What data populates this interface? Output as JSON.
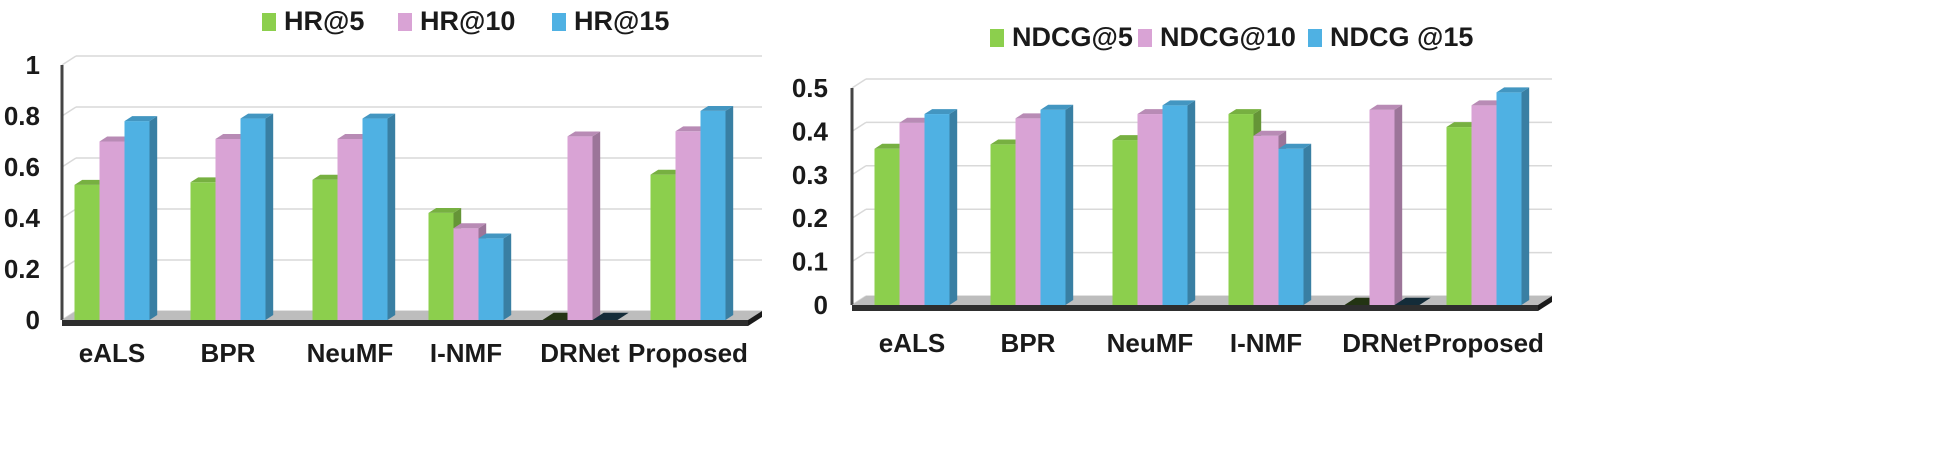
{
  "chart_data": [
    {
      "type": "bar",
      "categories": [
        "eALS",
        "BPR",
        "NeuMF",
        "I-NMF",
        "DRNet",
        "Proposed"
      ],
      "series": [
        {
          "name": "HR@5",
          "color": "#8ccf4d",
          "values": [
            0.53,
            0.54,
            0.55,
            0.42,
            0,
            0.57
          ]
        },
        {
          "name": "HR@10",
          "color": "#d9a3d5",
          "values": [
            0.7,
            0.71,
            0.71,
            0.36,
            0.72,
            0.74
          ]
        },
        {
          "name": "HR@15",
          "color": "#4fb1e3",
          "values": [
            0.78,
            0.79,
            0.79,
            0.32,
            0,
            0.82
          ]
        }
      ],
      "ylim": [
        0,
        1
      ],
      "yticks": [
        "0",
        "0.2",
        "0.4",
        "0.6",
        "0.8",
        "1"
      ],
      "grid": true,
      "legend_position": "top"
    },
    {
      "type": "bar",
      "categories": [
        "eALS",
        "BPR",
        "NeuMF",
        "I-NMF",
        "DRNet",
        "Proposed"
      ],
      "series": [
        {
          "name": "NDCG@5",
          "color": "#8ccf4d",
          "values": [
            0.36,
            0.37,
            0.38,
            0.44,
            0,
            0.41
          ]
        },
        {
          "name": "NDCG@10",
          "color": "#d9a3d5",
          "values": [
            0.42,
            0.43,
            0.44,
            0.39,
            0.45,
            0.46
          ]
        },
        {
          "name": "NDCG @15",
          "color": "#4fb1e3",
          "values": [
            0.44,
            0.45,
            0.46,
            0.36,
            0,
            0.49
          ]
        }
      ],
      "ylim": [
        0,
        0.5
      ],
      "yticks": [
        "0",
        "0.1",
        "0.2",
        "0.3",
        "0.4",
        "0.5"
      ],
      "grid": true,
      "legend_position": "top"
    }
  ]
}
